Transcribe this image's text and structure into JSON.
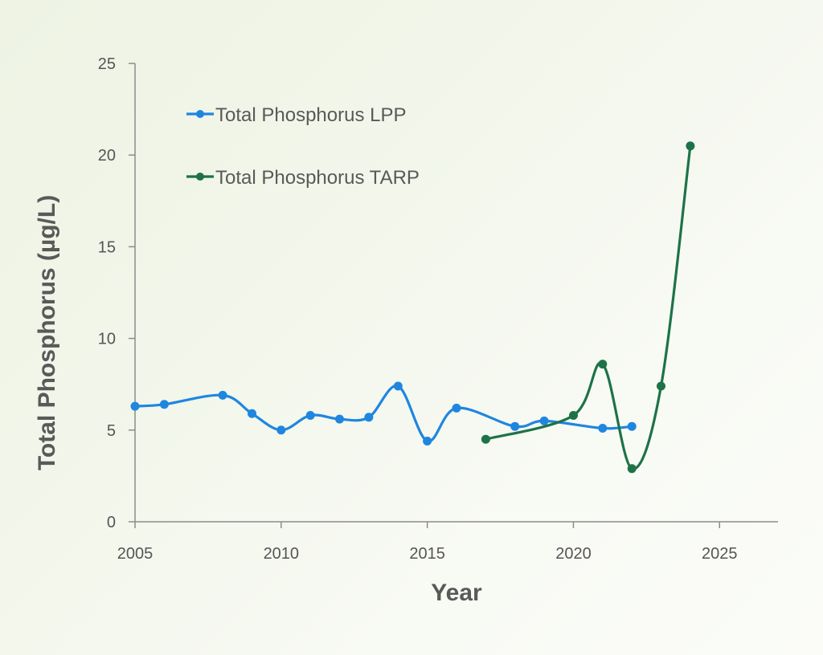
{
  "chart_data": {
    "type": "line",
    "title": "",
    "xlabel": "Year",
    "ylabel": "Total Phosphorus (µg/L)",
    "xlim": [
      2005,
      2027
    ],
    "ylim": [
      0,
      25
    ],
    "x_ticks": [
      2005,
      2010,
      2015,
      2020,
      2025
    ],
    "y_ticks": [
      0,
      5,
      10,
      15,
      20,
      25
    ],
    "grid": false,
    "legend_position": "top-left",
    "series": [
      {
        "name": "Total Phosphorus LPP",
        "color": "#1f86e0",
        "x": [
          2005,
          2006,
          2008,
          2009,
          2010,
          2011,
          2012,
          2013,
          2014,
          2015,
          2016,
          2018,
          2019,
          2021,
          2022
        ],
        "y": [
          6.3,
          6.4,
          6.9,
          5.9,
          5.0,
          5.8,
          5.6,
          5.7,
          7.4,
          4.4,
          6.2,
          5.2,
          5.5,
          5.1,
          5.2
        ]
      },
      {
        "name": "Total Phosphorus TARP",
        "color": "#1e7248",
        "x": [
          2017,
          2020,
          2021,
          2022,
          2023,
          2024
        ],
        "y": [
          4.5,
          5.8,
          8.6,
          2.9,
          7.4,
          20.5
        ]
      }
    ]
  }
}
